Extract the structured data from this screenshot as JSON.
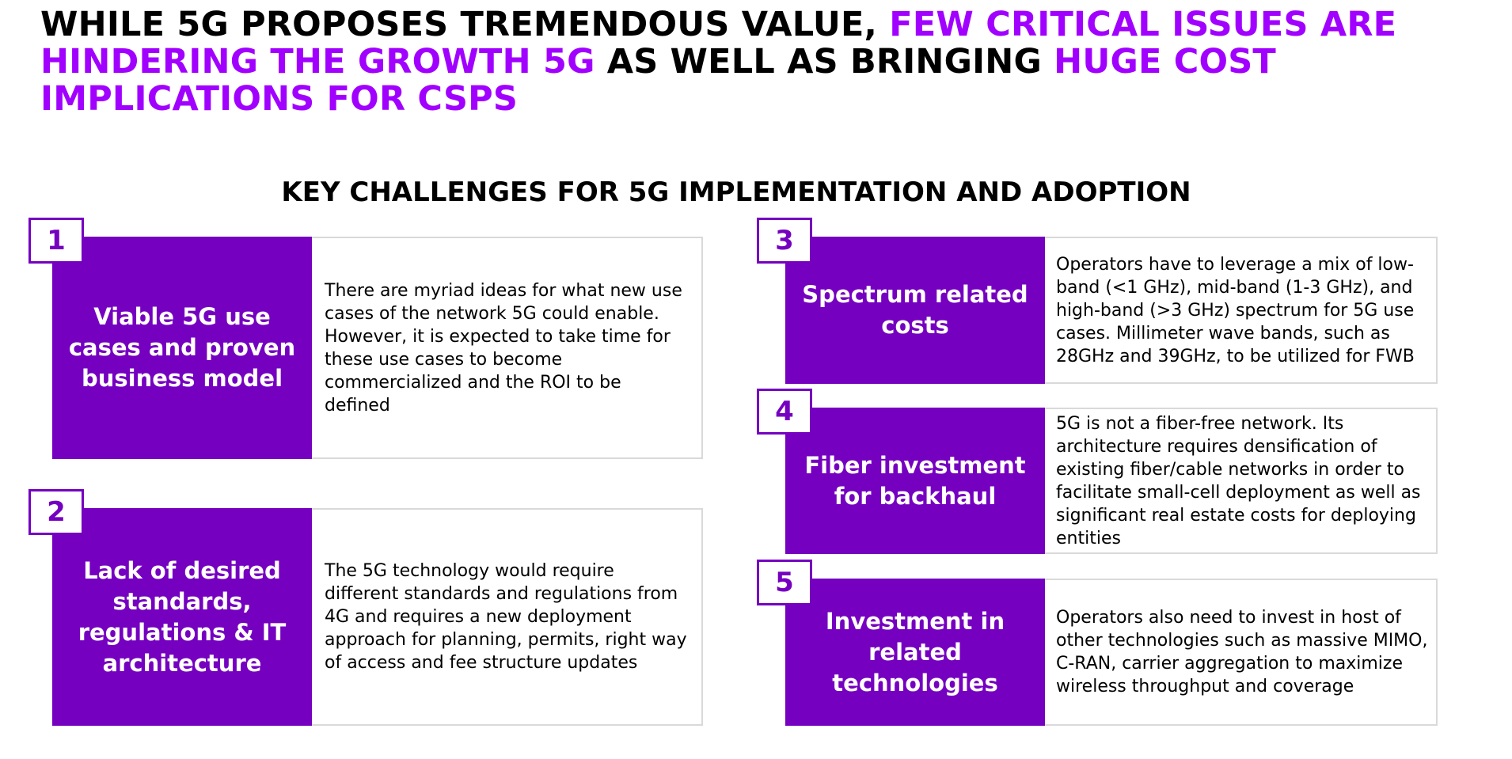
{
  "headline": {
    "part1": "WHILE 5G PROPOSES TREMENDOUS VALUE, ",
    "part2": "FEW CRITICAL ISSUES ARE HINDERING THE GROWTH 5G",
    "part3": " AS WELL AS BRINGING ",
    "part4": "HUGE COST IMPLICATIONS FOR CSPS"
  },
  "section_title": "KEY CHALLENGES FOR 5G IMPLEMENTATION AND ADOPTION",
  "colors": {
    "accent": "#a100ff",
    "purple_box": "#7500c0",
    "border": "#d9d9d9",
    "text": "#000000"
  },
  "challenges": [
    {
      "number": "1",
      "title": "Viable 5G use cases and proven business model",
      "description": "There are myriad ideas for what new use cases of the network 5G could enable. However, it is expected to take time for these use cases to become commercialized and the ROI to be defined"
    },
    {
      "number": "2",
      "title": "Lack of desired standards, regulations & IT architecture",
      "description": "The 5G technology would require different standards and regulations from 4G and requires a new deployment approach for planning, permits, right way of access and fee structure updates"
    },
    {
      "number": "3",
      "title": "Spectrum related costs",
      "description": "Operators have to leverage a mix of low-band (<1 GHz), mid-band (1-3 GHz), and high-band (>3 GHz) spectrum for 5G use cases. Millimeter wave bands, such as 28GHz and 39GHz, to be utilized for FWB"
    },
    {
      "number": "4",
      "title": "Fiber investment for backhaul",
      "description": "5G is not a fiber-free network. Its architecture requires densification of existing fiber/cable networks in order to facilitate small-cell deployment as well as significant real estate costs for deploying entities"
    },
    {
      "number": "5",
      "title": "Investment in related technologies",
      "description": "Operators also need to invest in host of other technologies such as massive MIMO, C-RAN, carrier aggregation to maximize wireless throughput and coverage"
    }
  ]
}
